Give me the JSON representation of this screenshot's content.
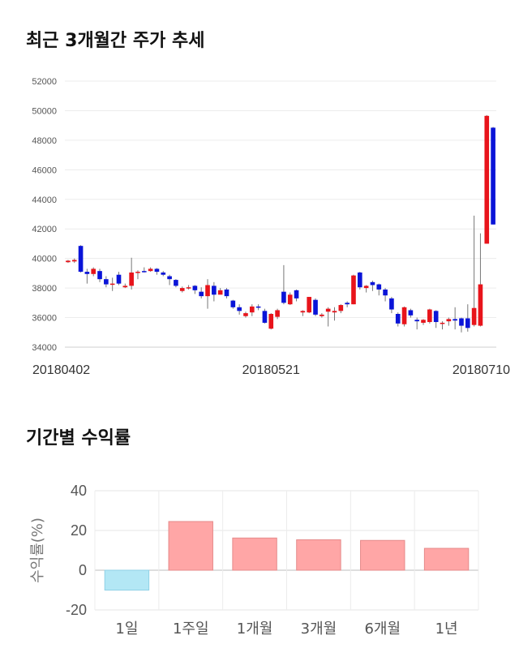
{
  "sections": {
    "price_title": "최근 3개월간 주가 추세",
    "return_title": "기간별 수익률"
  },
  "chart_data": [
    {
      "type": "candlestick",
      "title": "최근 3개월간 주가 추세",
      "ylim": [
        34000,
        52000
      ],
      "yticks": [
        34000,
        36000,
        38000,
        40000,
        42000,
        44000,
        46000,
        48000,
        50000,
        52000
      ],
      "xtick_labels": [
        {
          "index": 0,
          "label": "20180402"
        },
        {
          "index": 32,
          "label": "20180521"
        },
        {
          "index": 64,
          "label": "20180710"
        }
      ],
      "up_color": "#e8141b",
      "down_color": "#0a14d8",
      "candles": [
        [
          39750,
          39850,
          39700,
          39900
        ],
        [
          39800,
          39900,
          39700,
          40000
        ],
        [
          40850,
          39100,
          39050,
          40900
        ],
        [
          39100,
          38950,
          38300,
          39300
        ],
        [
          38950,
          39300,
          38800,
          39400
        ],
        [
          39150,
          38600,
          38400,
          39300
        ],
        [
          38600,
          38250,
          38050,
          38800
        ],
        [
          38300,
          38300,
          37800,
          38700
        ],
        [
          38900,
          38300,
          38200,
          39100
        ],
        [
          38050,
          38150,
          38000,
          38300
        ],
        [
          38150,
          39050,
          37900,
          40050
        ],
        [
          39050,
          39100,
          38600,
          39200
        ],
        [
          39150,
          39100,
          39050,
          39400
        ],
        [
          39150,
          39300,
          39100,
          39400
        ],
        [
          39300,
          39100,
          38900,
          39350
        ],
        [
          39050,
          38900,
          38800,
          39150
        ],
        [
          38800,
          38600,
          38200,
          38900
        ],
        [
          38550,
          38150,
          38050,
          38600
        ],
        [
          37800,
          38000,
          37700,
          38100
        ],
        [
          38050,
          38050,
          37900,
          38200
        ],
        [
          38150,
          37850,
          37600,
          38200
        ],
        [
          37750,
          37450,
          37300,
          38050
        ],
        [
          37450,
          38200,
          36600,
          38600
        ],
        [
          38150,
          37550,
          37100,
          38400
        ],
        [
          37550,
          37850,
          37600,
          38000
        ],
        [
          37900,
          37450,
          37300,
          38000
        ],
        [
          37150,
          36700,
          36600,
          37200
        ],
        [
          36700,
          36450,
          36200,
          36900
        ],
        [
          36100,
          36300,
          36000,
          36400
        ],
        [
          36350,
          36750,
          36100,
          36900
        ],
        [
          36750,
          36700,
          36500,
          36900
        ],
        [
          36450,
          35650,
          35600,
          36600
        ],
        [
          35250,
          36250,
          35200,
          36300
        ],
        [
          36050,
          36500,
          35900,
          36600
        ],
        [
          37750,
          37000,
          36900,
          39550
        ],
        [
          36900,
          37550,
          36850,
          37700
        ],
        [
          37850,
          37300,
          37100,
          37900
        ],
        [
          36350,
          36450,
          36100,
          36500
        ],
        [
          36350,
          37400,
          36300,
          37400
        ],
        [
          37200,
          36200,
          36100,
          37300
        ],
        [
          36100,
          36200,
          36000,
          36300
        ],
        [
          36400,
          36600,
          35400,
          36700
        ],
        [
          36350,
          36450,
          35800,
          36700
        ],
        [
          36450,
          36850,
          36300,
          36900
        ],
        [
          37000,
          36900,
          36700,
          37100
        ],
        [
          36900,
          38850,
          36900,
          38900
        ],
        [
          39050,
          38050,
          37900,
          39100
        ],
        [
          38000,
          38150,
          37700,
          38200
        ],
        [
          38400,
          38200,
          37800,
          38500
        ],
        [
          38250,
          37900,
          37500,
          38300
        ],
        [
          37900,
          37500,
          37100,
          38000
        ],
        [
          37300,
          36550,
          36300,
          37400
        ],
        [
          36250,
          35600,
          35400,
          36350
        ],
        [
          35550,
          36700,
          35400,
          36750
        ],
        [
          36500,
          36150,
          36000,
          36600
        ],
        [
          35850,
          35750,
          35200,
          36000
        ],
        [
          35650,
          35850,
          35500,
          35900
        ],
        [
          35700,
          36550,
          35600,
          36600
        ],
        [
          36450,
          35700,
          35300,
          36500
        ],
        [
          35650,
          35650,
          35200,
          35750
        ],
        [
          35750,
          35900,
          35450,
          36000
        ],
        [
          35900,
          35800,
          35200,
          36700
        ],
        [
          35950,
          35450,
          35000,
          36000
        ],
        [
          35950,
          35300,
          35050,
          36900
        ],
        [
          35500,
          36650,
          35400,
          42900
        ],
        [
          35450,
          38250,
          35400,
          41700
        ],
        [
          41000,
          49650,
          41000,
          49700
        ],
        [
          48850,
          42300,
          42300,
          48900
        ]
      ]
    },
    {
      "type": "bar",
      "title": "기간별 수익률",
      "ylabel": "수익률(%)",
      "ylim": [
        -20,
        40
      ],
      "yticks": [
        -20,
        0,
        20,
        40
      ],
      "categories": [
        "1일",
        "1주일",
        "1개월",
        "3개월",
        "6개월",
        "1년"
      ],
      "values": [
        -10,
        24.5,
        16.2,
        15.3,
        15,
        11
      ],
      "positive_color": "#ffa6a6",
      "negative_color": "#b3e7f5"
    }
  ]
}
